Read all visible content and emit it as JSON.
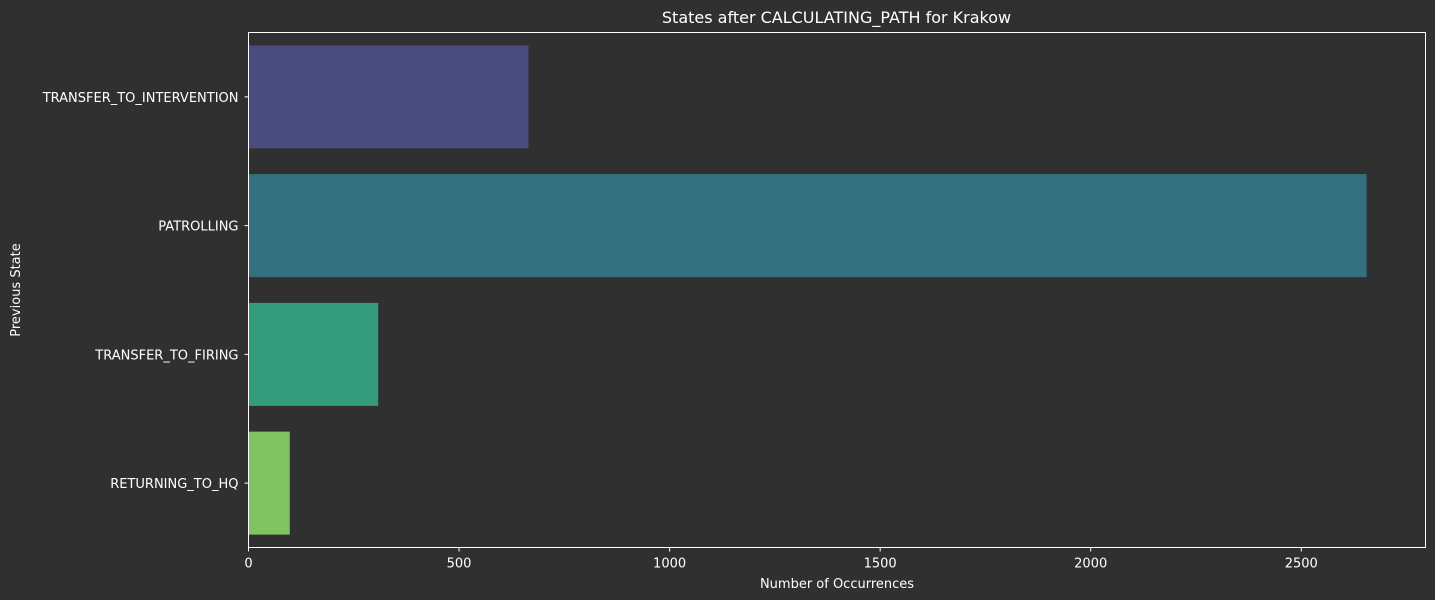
{
  "chart_data": {
    "type": "bar",
    "orientation": "horizontal",
    "title": "States after CALCULATING_PATH for Krakow",
    "xlabel": "Number of Occurrences",
    "ylabel": "Previous State",
    "categories": [
      "TRANSFER_TO_INTERVENTION",
      "PATROLLING",
      "TRANSFER_TO_FIRING",
      "RETURNING_TO_HQ"
    ],
    "values": [
      665,
      2655,
      308,
      98
    ],
    "xlim": [
      0,
      2795
    ],
    "xticks": [
      0,
      500,
      1000,
      1500,
      2000,
      2500
    ],
    "grid": false,
    "legend": "none",
    "bar_colors": [
      "#4a4c7e",
      "#357080",
      "#339a7b",
      "#80c462"
    ],
    "background_color": "#303030",
    "axis_color": "#ffffff",
    "text_color": "#ffffff"
  }
}
